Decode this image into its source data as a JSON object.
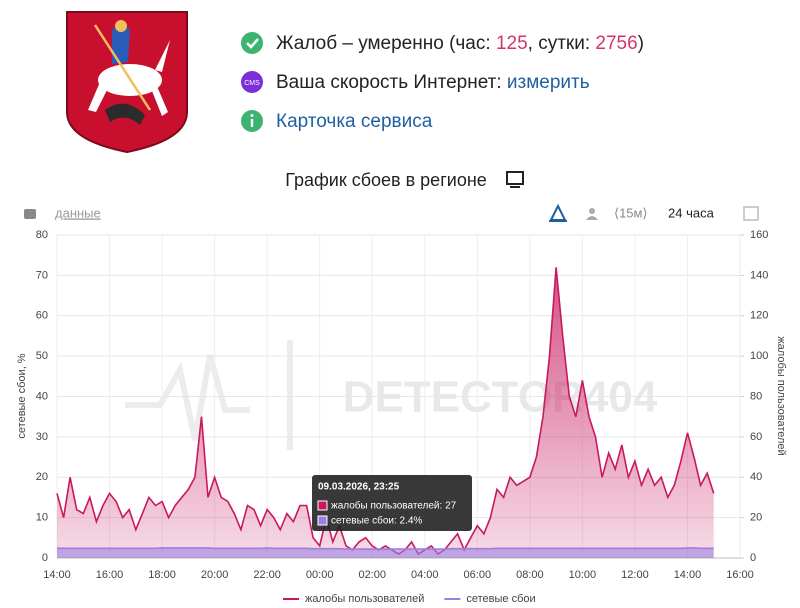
{
  "header": {
    "status": {
      "text": "Жалоб – умеренно (час: ",
      "hour": "125",
      "mid": ", сутки: ",
      "day": "2756",
      "end": ")"
    },
    "speed": {
      "icon": "CMS",
      "label": "Ваша скорость Интернет: ",
      "link": "измерить"
    },
    "card": "Карточка сервиса"
  },
  "toolbar": {
    "data_link": "данные",
    "interval": "⟨15м⟩",
    "period": "24 часа"
  },
  "watermark": "DETECTOR404",
  "tooltip": {
    "title": "09.03.2026, 23:25",
    "rows": [
      "жалобы пользователей: 27",
      "сетевые сбои: 2.4%"
    ]
  },
  "chart_data": {
    "type": "area",
    "title": "График сбоев в регионе",
    "ylabel": "сетевые сбои, %",
    "y2label": "жалобы пользователей",
    "x": [
      14,
      14.25,
      14.5,
      14.75,
      15,
      15.25,
      15.5,
      15.75,
      16,
      16.25,
      16.5,
      16.75,
      17,
      17.25,
      17.5,
      17.75,
      18,
      18.25,
      18.5,
      18.75,
      19,
      19.25,
      19.5,
      19.75,
      20,
      20.25,
      20.5,
      20.75,
      21,
      21.25,
      21.5,
      21.75,
      22,
      22.25,
      22.5,
      22.75,
      23,
      23.25,
      23.5,
      23.75,
      24,
      24.25,
      24.5,
      24.75,
      25,
      25.25,
      25.5,
      25.75,
      26,
      26.25,
      26.5,
      26.75,
      27,
      27.25,
      27.5,
      27.75,
      28,
      28.25,
      28.5,
      28.75,
      29,
      29.25,
      29.5,
      29.75,
      30,
      30.25,
      30.5,
      30.75,
      31,
      31.25,
      31.5,
      31.75,
      32,
      32.25,
      32.5,
      32.75,
      33,
      33.25,
      33.5,
      33.75,
      34,
      34.25,
      34.5,
      34.75,
      35,
      35.25,
      35.5,
      35.75,
      36,
      36.25,
      36.5,
      36.75,
      37,
      37.25,
      37.5,
      37.75,
      38,
      38.25,
      38.5,
      38.75,
      39
    ],
    "xlim": [
      14,
      40
    ],
    "xticks": [
      {
        "value": 14,
        "label": "14:00"
      },
      {
        "value": 16,
        "label": "16:00"
      },
      {
        "value": 18,
        "label": "18:00"
      },
      {
        "value": 20,
        "label": "20:00"
      },
      {
        "value": 22,
        "label": "22:00"
      },
      {
        "value": 24,
        "label": "00:00"
      },
      {
        "value": 26,
        "label": "02:00"
      },
      {
        "value": 28,
        "label": "04:00"
      },
      {
        "value": 30,
        "label": "06:00"
      },
      {
        "value": 32,
        "label": "08:00"
      },
      {
        "value": 34,
        "label": "10:00"
      },
      {
        "value": 36,
        "label": "12:00"
      },
      {
        "value": 38,
        "label": "14:00"
      },
      {
        "value": 40,
        "label": "16:00"
      }
    ],
    "ylim": [
      0,
      80
    ],
    "yticks": [
      0,
      10,
      20,
      30,
      40,
      50,
      60,
      70,
      80
    ],
    "y2lim": [
      0,
      160
    ],
    "y2ticks": [
      0,
      20,
      40,
      60,
      80,
      100,
      120,
      140,
      160
    ],
    "grid": true,
    "legend": "bottom",
    "series": [
      {
        "name": "жалобы пользователей",
        "color": "#c8185e",
        "axis": "y2",
        "values": [
          32,
          20,
          40,
          24,
          22,
          30,
          18,
          26,
          32,
          28,
          20,
          24,
          14,
          22,
          30,
          26,
          28,
          20,
          26,
          30,
          34,
          40,
          70,
          30,
          40,
          30,
          28,
          22,
          14,
          26,
          24,
          16,
          24,
          20,
          14,
          22,
          18,
          26,
          26,
          10,
          6,
          20,
          8,
          16,
          6,
          4,
          8,
          10,
          6,
          4,
          6,
          4,
          2,
          4,
          8,
          2,
          4,
          6,
          2,
          4,
          8,
          12,
          4,
          10,
          16,
          12,
          20,
          34,
          30,
          40,
          36,
          38,
          40,
          50,
          70,
          100,
          144,
          110,
          80,
          70,
          88,
          70,
          60,
          40,
          52,
          44,
          56,
          40,
          48,
          36,
          44,
          36,
          40,
          30,
          36,
          48,
          62,
          50,
          36,
          42,
          32
        ]
      },
      {
        "name": "сетевые сбои",
        "color": "#9c7fe0",
        "values": [
          2.4,
          2.4,
          2.4,
          2.4,
          2.4,
          2.4,
          2.4,
          2.4,
          2.4,
          2.4,
          2.4,
          2.4,
          2.4,
          2.4,
          2.4,
          2.4,
          2.5,
          2.5,
          2.5,
          2.5,
          2.5,
          2.5,
          2.5,
          2.5,
          2.4,
          2.4,
          2.4,
          2.4,
          2.4,
          2.4,
          2.4,
          2.4,
          2.5,
          2.4,
          2.4,
          2.4,
          2.4,
          2.4,
          2.4,
          2.3,
          2.3,
          2.3,
          2.3,
          2.3,
          2.2,
          2.2,
          2.2,
          2.2,
          2.2,
          2.2,
          2.2,
          2.2,
          2.2,
          2.2,
          2.2,
          2.2,
          2.2,
          2.2,
          2.2,
          2.2,
          2.3,
          2.3,
          2.3,
          2.3,
          2.3,
          2.3,
          2.3,
          2.4,
          2.4,
          2.4,
          2.4,
          2.4,
          2.4,
          2.4,
          2.4,
          2.4,
          2.4,
          2.4,
          2.4,
          2.4,
          2.4,
          2.4,
          2.4,
          2.4,
          2.4,
          2.4,
          2.4,
          2.4,
          2.4,
          2.4,
          2.4,
          2.4,
          2.4,
          2.4,
          2.4,
          2.4,
          2.5,
          2.5,
          2.4,
          2.4,
          2.4
        ]
      }
    ]
  }
}
